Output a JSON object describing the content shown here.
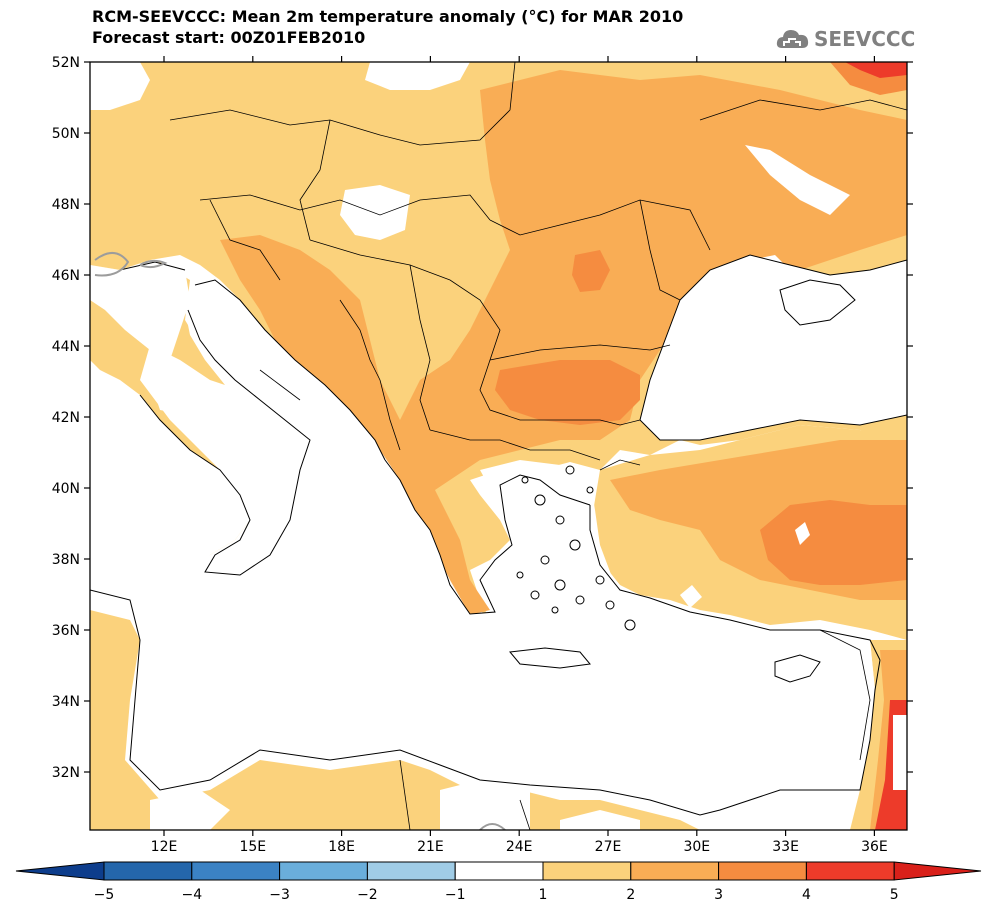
{
  "header": {
    "title_line1": "RCM-SEEVCCC: Mean 2m temperature anomaly (°C) for MAR 2010",
    "title_line2": "Forecast start: 00Z01FEB2010",
    "logo_text": "SEEVCCC",
    "logo_icon": "cloud-icon"
  },
  "map": {
    "region": "Southeast Europe / Eastern Mediterranean",
    "lat_ticks": [
      "52N",
      "50N",
      "48N",
      "46N",
      "44N",
      "42N",
      "40N",
      "38N",
      "36N",
      "34N",
      "32N"
    ],
    "lon_ticks": [
      "12E",
      "15E",
      "18E",
      "21E",
      "24E",
      "27E",
      "30E",
      "33E",
      "36E"
    ]
  },
  "colorbar": {
    "labels": [
      "−5",
      "−4",
      "−3",
      "−2",
      "−1",
      "1",
      "2",
      "3",
      "4",
      "5"
    ],
    "colors": [
      "#0d3d8c",
      "#2466ab",
      "#3b82c4",
      "#6aaedb",
      "#a0cce6",
      "#ffffff",
      "#fbd27c",
      "#f9ad55",
      "#f58c40",
      "#ed3b2a",
      "#d9201a"
    ]
  }
}
